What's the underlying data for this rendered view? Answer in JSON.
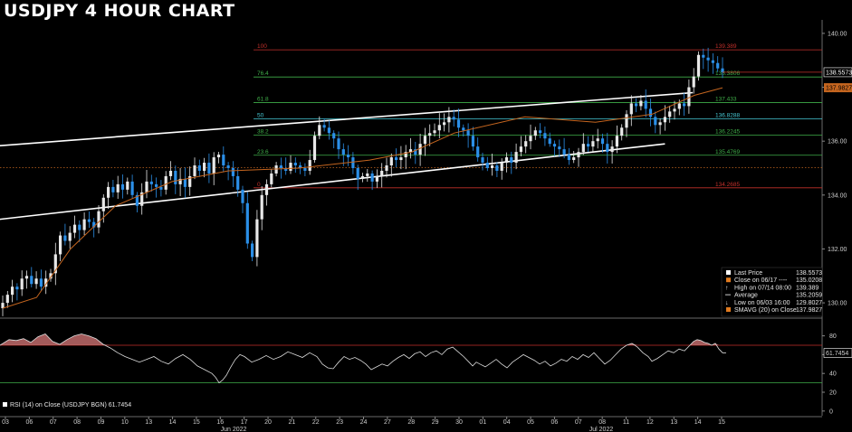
{
  "title": "USDJPY 4 HOUR CHART",
  "colors": {
    "background": "#000000",
    "candle_up": "#e8e8e8",
    "candle_down": "#2b8fe8",
    "sma": "#c4651f",
    "trend": "#ffffff",
    "fib_100": "#c4302b",
    "fib_0": "#c4302b",
    "fib_mid": "#3fae49",
    "fib_50": "#46c8d4",
    "rsi": "#dddddd",
    "rsi_fill": "#d97a7a",
    "rsi_upper": "#c4302b",
    "rsi_lower": "#3fae49"
  },
  "chart_data": [
    {
      "type": "candlestick",
      "title": "USDJPY 4 HOUR CHART",
      "ylim": [
        129.5,
        140.5
      ],
      "yticks": [
        "140.00",
        "138.00",
        "136.00",
        "134.00",
        "132.00",
        "130.00"
      ],
      "grid": false,
      "x_ticks": [
        "03",
        "06",
        "07",
        "08",
        "09",
        "10",
        "13",
        "14",
        "15",
        "16",
        "17",
        "20",
        "21",
        "22",
        "23",
        "24",
        "27",
        "28",
        "29",
        "30",
        "01",
        "04",
        "05",
        "06",
        "07",
        "08",
        "11",
        "12",
        "13",
        "14",
        "15"
      ],
      "month_labels": [
        "Jun 2022",
        "Jul 2022"
      ],
      "closes": [
        130.0,
        130.3,
        130.6,
        130.5,
        130.9,
        131.0,
        130.7,
        130.9,
        130.6,
        130.9,
        131.1,
        131.8,
        132.5,
        132.3,
        132.6,
        132.9,
        132.7,
        133.1,
        133.0,
        132.8,
        133.4,
        133.9,
        134.3,
        134.1,
        134.4,
        134.2,
        134.5,
        134.0,
        133.6,
        134.1,
        134.5,
        134.4,
        134.3,
        134.2,
        134.7,
        134.9,
        134.4,
        134.6,
        134.3,
        134.7,
        135.1,
        134.9,
        135.2,
        134.8,
        135.4,
        135.5,
        135.1,
        135.0,
        134.7,
        134.2,
        133.7,
        132.2,
        131.7,
        133.1,
        134.0,
        134.4,
        134.8,
        135.1,
        135.0,
        134.9,
        135.2,
        135.1,
        135.0,
        134.9,
        135.3,
        136.2,
        136.6,
        136.5,
        136.3,
        136.1,
        135.7,
        135.5,
        135.4,
        135.0,
        134.6,
        134.7,
        134.8,
        134.5,
        134.7,
        134.9,
        135.1,
        135.4,
        135.3,
        135.4,
        135.6,
        135.7,
        135.5,
        135.9,
        136.2,
        136.3,
        136.4,
        136.6,
        136.7,
        136.9,
        136.8,
        136.5,
        136.4,
        136.2,
        135.8,
        135.4,
        135.2,
        135.0,
        135.1,
        134.9,
        135.2,
        135.4,
        135.2,
        135.6,
        135.8,
        136.0,
        136.2,
        136.4,
        136.3,
        136.1,
        135.9,
        135.8,
        135.7,
        135.5,
        135.3,
        135.4,
        135.6,
        135.9,
        135.8,
        136.0,
        136.1,
        135.9,
        135.6,
        135.8,
        136.2,
        136.5,
        137.0,
        137.4,
        137.3,
        137.5,
        137.2,
        136.9,
        136.6,
        136.7,
        136.9,
        137.1,
        137.2,
        137.4,
        137.3,
        138.0,
        138.4,
        139.2,
        139.1,
        139.0,
        138.9,
        138.7,
        138.56
      ],
      "sma": [
        {
          "x": 0,
          "y": 129.8
        },
        {
          "x": 12,
          "y": 130.2
        },
        {
          "x": 24,
          "y": 132.0
        },
        {
          "x": 40,
          "y": 133.6
        },
        {
          "x": 60,
          "y": 134.5
        },
        {
          "x": 80,
          "y": 134.9
        },
        {
          "x": 105,
          "y": 135.0
        },
        {
          "x": 130,
          "y": 135.3
        },
        {
          "x": 145,
          "y": 135.6
        },
        {
          "x": 160,
          "y": 136.3
        },
        {
          "x": 185,
          "y": 136.9
        },
        {
          "x": 210,
          "y": 136.7
        },
        {
          "x": 230,
          "y": 137.0
        },
        {
          "x": 245,
          "y": 137.7
        },
        {
          "x": 255,
          "y": 137.98
        }
      ],
      "trendlines": [
        {
          "points": [
            [
              8,
              132.9
            ],
            [
              1380,
              135.9
            ]
          ]
        },
        {
          "points": [
            [
              85,
              135.8
            ],
            [
              1438,
              137.8
            ]
          ]
        }
      ],
      "fib_levels": [
        {
          "label": "100",
          "value_label": "139.389",
          "y": 139.389,
          "color_key": "fib_100"
        },
        {
          "label": "76.4",
          "value_label": "138.3806",
          "y": 138.3806,
          "color_key": "fib_mid"
        },
        {
          "label": "61.8",
          "value_label": "137.433",
          "y": 137.433,
          "color_key": "fib_mid"
        },
        {
          "label": "50",
          "value_label": "136.8288",
          "y": 136.8288,
          "color_key": "fib_50"
        },
        {
          "label": "38.2",
          "value_label": "136.2245",
          "y": 136.2245,
          "color_key": "fib_mid"
        },
        {
          "label": "23.6",
          "value_label": "135.4769",
          "y": 135.4769,
          "color_key": "fib_mid"
        },
        {
          "label": "0",
          "value_label": "134.2685",
          "y": 134.2685,
          "color_key": "fib_0"
        }
      ],
      "price_labels": [
        {
          "text": "138.5573",
          "y": 138.5573,
          "style": "last"
        },
        {
          "text": "137.9827",
          "y": 137.9827,
          "style": "sma"
        }
      ],
      "reference_lines": [
        {
          "name": "close-06-17",
          "y": 135.0208
        }
      ],
      "legend": [
        {
          "label": "Last Price",
          "value": "138.5573",
          "marker": "box-white"
        },
        {
          "label": "Close on 06/17 ----",
          "value": "135.0208",
          "marker": "box-orange"
        },
        {
          "label": "High on 07/14 08:00",
          "value": "139.389",
          "marker": "arrow-up"
        },
        {
          "label": "Average",
          "value": "135.2059",
          "marker": "dash"
        },
        {
          "label": "Low on 06/03 16:00",
          "value": "129.8027",
          "marker": "arrow-down"
        },
        {
          "label": "SMAVG (20)  on Close",
          "value": "137.9827",
          "marker": "box-orange"
        }
      ],
      "legend_position": "bottom-right"
    },
    {
      "type": "line",
      "name": "RSI (14)  on Close (USDJPY BGN)",
      "value_label": "61.7454",
      "ylim": [
        -5,
        95
      ],
      "yticks": [
        "80",
        "60",
        "40",
        "20",
        "0"
      ],
      "upper": 70,
      "lower": 30,
      "legend": "RSI (14)  on Close (USDJPY BGN) 61.7454",
      "values": [
        [
          0,
          70
        ],
        [
          10,
          76
        ],
        [
          18,
          75
        ],
        [
          26,
          77
        ],
        [
          34,
          73
        ],
        [
          42,
          79
        ],
        [
          50,
          82
        ],
        [
          58,
          74
        ],
        [
          66,
          71
        ],
        [
          74,
          76
        ],
        [
          82,
          80
        ],
        [
          90,
          82
        ],
        [
          98,
          80
        ],
        [
          106,
          77
        ],
        [
          114,
          71
        ],
        [
          122,
          67
        ],
        [
          130,
          62
        ],
        [
          138,
          58
        ],
        [
          146,
          55
        ],
        [
          154,
          52
        ],
        [
          162,
          55
        ],
        [
          170,
          58
        ],
        [
          178,
          53
        ],
        [
          186,
          50
        ],
        [
          194,
          56
        ],
        [
          202,
          60
        ],
        [
          210,
          55
        ],
        [
          218,
          48
        ],
        [
          226,
          44
        ],
        [
          234,
          40
        ],
        [
          238,
          36
        ],
        [
          242,
          30
        ],
        [
          246,
          33
        ],
        [
          250,
          38
        ],
        [
          255,
          47
        ],
        [
          260,
          55
        ],
        [
          265,
          60
        ],
        [
          270,
          58
        ],
        [
          278,
          52
        ],
        [
          286,
          55
        ],
        [
          294,
          59
        ],
        [
          302,
          55
        ],
        [
          310,
          58
        ],
        [
          318,
          63
        ],
        [
          326,
          60
        ],
        [
          334,
          57
        ],
        [
          342,
          62
        ],
        [
          350,
          58
        ],
        [
          356,
          50
        ],
        [
          362,
          46
        ],
        [
          368,
          45
        ],
        [
          374,
          52
        ],
        [
          380,
          58
        ],
        [
          386,
          55
        ],
        [
          392,
          57
        ],
        [
          398,
          54
        ],
        [
          404,
          50
        ],
        [
          410,
          44
        ],
        [
          416,
          47
        ],
        [
          422,
          50
        ],
        [
          428,
          48
        ],
        [
          434,
          53
        ],
        [
          440,
          57
        ],
        [
          446,
          60
        ],
        [
          452,
          56
        ],
        [
          458,
          61
        ],
        [
          464,
          63
        ],
        [
          470,
          58
        ],
        [
          476,
          62
        ],
        [
          482,
          64
        ],
        [
          488,
          60
        ],
        [
          494,
          66
        ],
        [
          500,
          68
        ],
        [
          506,
          63
        ],
        [
          512,
          58
        ],
        [
          518,
          52
        ],
        [
          522,
          48
        ],
        [
          526,
          52
        ],
        [
          530,
          50
        ],
        [
          536,
          47
        ],
        [
          542,
          51
        ],
        [
          548,
          55
        ],
        [
          554,
          50
        ],
        [
          560,
          46
        ],
        [
          566,
          52
        ],
        [
          572,
          56
        ],
        [
          578,
          60
        ],
        [
          584,
          57
        ],
        [
          590,
          54
        ],
        [
          596,
          50
        ],
        [
          602,
          53
        ],
        [
          608,
          48
        ],
        [
          614,
          51
        ],
        [
          620,
          55
        ],
        [
          626,
          53
        ],
        [
          632,
          58
        ],
        [
          638,
          55
        ],
        [
          644,
          60
        ],
        [
          650,
          57
        ],
        [
          656,
          62
        ],
        [
          662,
          56
        ],
        [
          668,
          50
        ],
        [
          674,
          54
        ],
        [
          680,
          60
        ],
        [
          686,
          66
        ],
        [
          692,
          70
        ],
        [
          698,
          72
        ],
        [
          704,
          68
        ],
        [
          710,
          62
        ],
        [
          716,
          58
        ],
        [
          720,
          53
        ],
        [
          726,
          56
        ],
        [
          732,
          60
        ],
        [
          738,
          64
        ],
        [
          744,
          62
        ],
        [
          750,
          66
        ],
        [
          756,
          64
        ],
        [
          762,
          70
        ],
        [
          766,
          74
        ],
        [
          770,
          76
        ],
        [
          774,
          75
        ],
        [
          778,
          73
        ],
        [
          782,
          72
        ],
        [
          786,
          70
        ],
        [
          790,
          72
        ],
        [
          794,
          66
        ],
        [
          798,
          62
        ],
        [
          802,
          61.7
        ]
      ]
    }
  ]
}
